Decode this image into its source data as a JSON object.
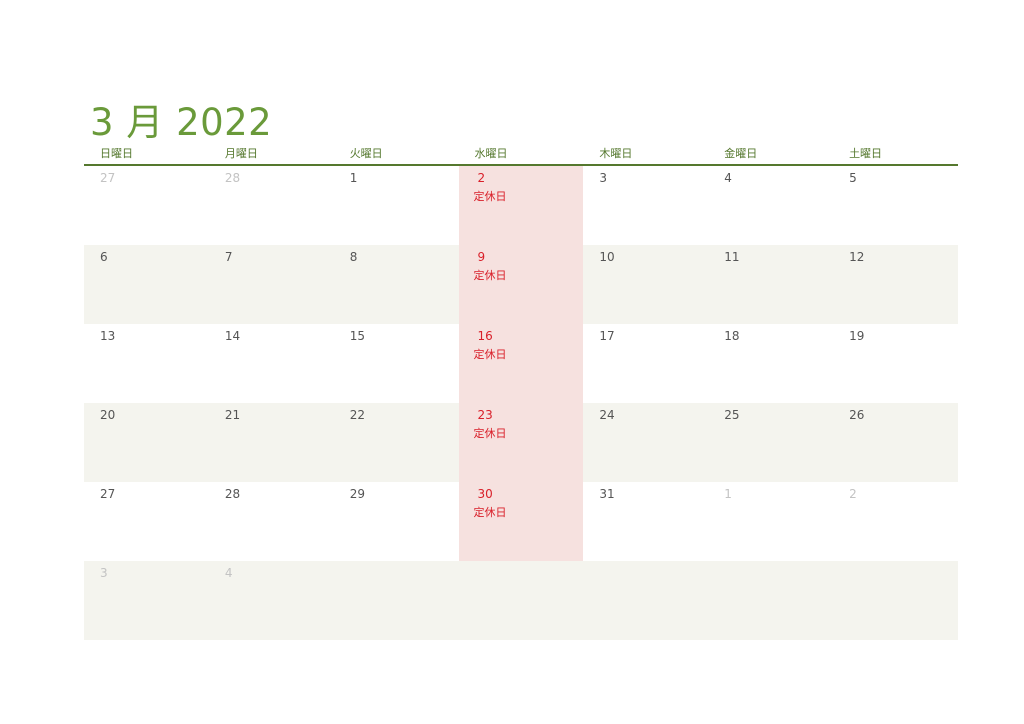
{
  "title": "3 月 2022",
  "weekdays": [
    "日曜日",
    "月曜日",
    "火曜日",
    "水曜日",
    "木曜日",
    "金曜日",
    "土曜日"
  ],
  "colors": {
    "accent": "#6a9a3a",
    "header_line": "#55782e",
    "closed_bg": "#f6e1df",
    "closed_text": "#d9202a",
    "shade": "#f4f4ee"
  },
  "closed_label": "定休日",
  "weeks": [
    [
      {
        "d": "27",
        "other": true
      },
      {
        "d": "28",
        "other": true
      },
      {
        "d": "1"
      },
      {
        "d": "2",
        "closed": true
      },
      {
        "d": "3"
      },
      {
        "d": "4"
      },
      {
        "d": "5"
      }
    ],
    [
      {
        "d": "6"
      },
      {
        "d": "7"
      },
      {
        "d": "8"
      },
      {
        "d": "9",
        "closed": true
      },
      {
        "d": "10"
      },
      {
        "d": "11"
      },
      {
        "d": "12"
      }
    ],
    [
      {
        "d": "13"
      },
      {
        "d": "14"
      },
      {
        "d": "15"
      },
      {
        "d": "16",
        "closed": true
      },
      {
        "d": "17"
      },
      {
        "d": "18"
      },
      {
        "d": "19"
      }
    ],
    [
      {
        "d": "20"
      },
      {
        "d": "21"
      },
      {
        "d": "22"
      },
      {
        "d": "23",
        "closed": true
      },
      {
        "d": "24"
      },
      {
        "d": "25"
      },
      {
        "d": "26"
      }
    ],
    [
      {
        "d": "27"
      },
      {
        "d": "28"
      },
      {
        "d": "29"
      },
      {
        "d": "30",
        "closed": true
      },
      {
        "d": "31"
      },
      {
        "d": "1",
        "other": true
      },
      {
        "d": "2",
        "other": true
      }
    ],
    [
      {
        "d": "3",
        "other": true
      },
      {
        "d": "4",
        "other": true
      },
      {
        "d": ""
      },
      {
        "d": ""
      },
      {
        "d": ""
      },
      {
        "d": ""
      },
      {
        "d": ""
      }
    ]
  ]
}
